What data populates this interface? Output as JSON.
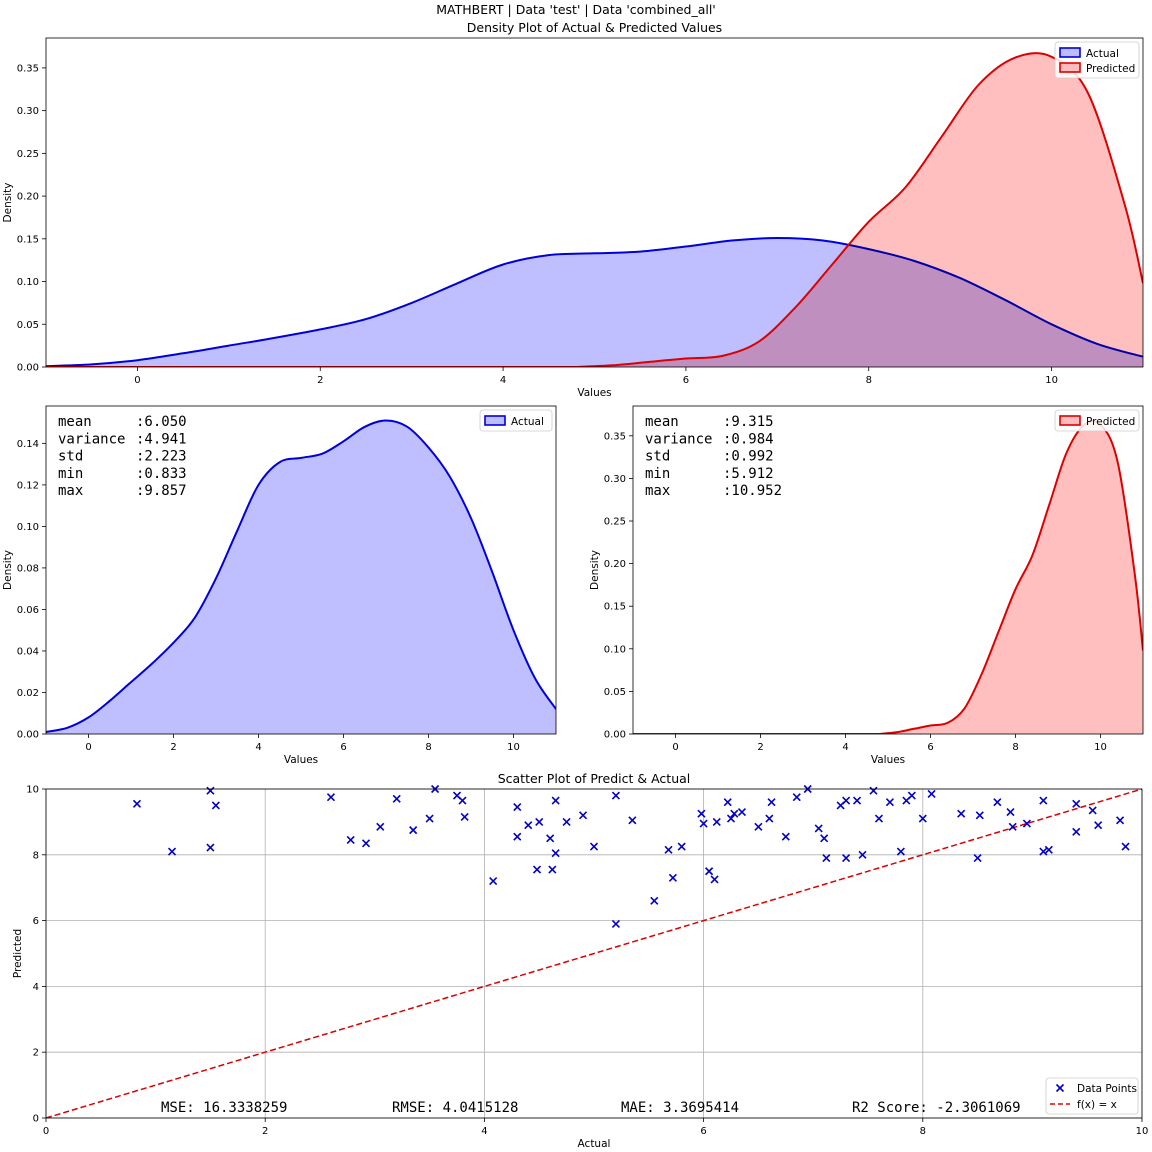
{
  "suptitle": "MATHBERT | Data 'test' | Data 'combined_all'",
  "colors": {
    "actual_line": "#0000dd",
    "actual_fill": "#bcbcff",
    "pred_line": "#dd0000",
    "pred_fill": "#ffbcbc",
    "identity": "#dd0000",
    "points": "#0000cc",
    "grid": "#b0b0b0"
  },
  "chart_data": [
    {
      "id": "top",
      "type": "area",
      "title": "Density Plot of Actual & Predicted Values",
      "xlabel": "Values",
      "ylabel": "Density",
      "xlim": [
        -1,
        11
      ],
      "ylim": [
        0,
        0.385
      ],
      "xticks": [
        0,
        2,
        4,
        6,
        8,
        10
      ],
      "yticks": [
        0.0,
        0.05,
        0.1,
        0.15,
        0.2,
        0.25,
        0.3,
        0.35
      ],
      "legend": "top-right",
      "series": [
        {
          "name": "Actual",
          "x": [
            -1,
            -0.5,
            0,
            0.5,
            1,
            1.5,
            2,
            2.5,
            3,
            3.5,
            4,
            4.5,
            5,
            5.5,
            6,
            6.5,
            7,
            7.5,
            8,
            8.5,
            9,
            9.5,
            10,
            10.5,
            11
          ],
          "y": [
            0.001,
            0.003,
            0.008,
            0.016,
            0.025,
            0.034,
            0.044,
            0.056,
            0.075,
            0.098,
            0.12,
            0.131,
            0.133,
            0.135,
            0.141,
            0.148,
            0.151,
            0.148,
            0.138,
            0.124,
            0.104,
            0.078,
            0.05,
            0.027,
            0.012
          ]
        },
        {
          "name": "Predicted",
          "x": [
            4.8,
            5.2,
            5.6,
            6.0,
            6.4,
            6.8,
            7.2,
            7.6,
            8.0,
            8.4,
            8.8,
            9.2,
            9.6,
            10.0,
            10.4,
            10.8,
            11.0
          ],
          "y": [
            0.0,
            0.002,
            0.006,
            0.01,
            0.013,
            0.03,
            0.07,
            0.12,
            0.17,
            0.21,
            0.27,
            0.33,
            0.362,
            0.363,
            0.32,
            0.19,
            0.098
          ]
        }
      ]
    },
    {
      "id": "actual",
      "type": "area",
      "title": "",
      "xlabel": "Values",
      "ylabel": "Density",
      "xlim": [
        -1,
        11
      ],
      "ylim": [
        0,
        0.158
      ],
      "xticks": [
        0,
        2,
        4,
        6,
        8,
        10
      ],
      "yticks": [
        0.0,
        0.02,
        0.04,
        0.06,
        0.08,
        0.1,
        0.12,
        0.14
      ],
      "legend": "top-right",
      "stats": [
        {
          "label": "mean",
          "value": ":6.050"
        },
        {
          "label": "variance",
          "value": ":4.941"
        },
        {
          "label": "std",
          "value": ":2.223"
        },
        {
          "label": "min",
          "value": ":0.833"
        },
        {
          "label": "max",
          "value": ":9.857"
        }
      ],
      "series": [
        {
          "name": "Actual",
          "x": [
            -1,
            -0.5,
            0,
            0.5,
            1,
            1.5,
            2,
            2.5,
            3,
            3.5,
            4,
            4.5,
            5,
            5.5,
            6,
            6.5,
            7,
            7.5,
            8,
            8.5,
            9,
            9.5,
            10,
            10.5,
            11
          ],
          "y": [
            0.001,
            0.003,
            0.008,
            0.016,
            0.025,
            0.034,
            0.044,
            0.056,
            0.075,
            0.098,
            0.12,
            0.131,
            0.133,
            0.135,
            0.141,
            0.148,
            0.151,
            0.148,
            0.138,
            0.124,
            0.104,
            0.078,
            0.05,
            0.027,
            0.012
          ]
        }
      ]
    },
    {
      "id": "pred",
      "type": "area",
      "title": "",
      "xlabel": "Values",
      "ylabel": "Density",
      "xlim": [
        -1,
        11
      ],
      "ylim": [
        0,
        0.385
      ],
      "xticks": [
        0,
        2,
        4,
        6,
        8,
        10
      ],
      "yticks": [
        0.0,
        0.05,
        0.1,
        0.15,
        0.2,
        0.25,
        0.3,
        0.35
      ],
      "legend": "top-right",
      "stats": [
        {
          "label": "mean",
          "value": ":9.315"
        },
        {
          "label": "variance",
          "value": ":0.984"
        },
        {
          "label": "std",
          "value": ":0.992"
        },
        {
          "label": "min",
          "value": ":5.912"
        },
        {
          "label": "max",
          "value": ":10.952"
        }
      ],
      "series": [
        {
          "name": "Predicted",
          "x": [
            4.8,
            5.2,
            5.6,
            6.0,
            6.4,
            6.8,
            7.2,
            7.6,
            8.0,
            8.4,
            8.8,
            9.2,
            9.6,
            10.0,
            10.4,
            10.8,
            11.0
          ],
          "y": [
            0.0,
            0.002,
            0.006,
            0.01,
            0.013,
            0.03,
            0.07,
            0.12,
            0.17,
            0.21,
            0.27,
            0.33,
            0.362,
            0.363,
            0.32,
            0.19,
            0.098
          ]
        }
      ]
    },
    {
      "id": "scatter",
      "type": "scatter",
      "title": "Scatter Plot of Predict & Actual",
      "xlabel": "Actual",
      "ylabel": "Predicted",
      "xlim": [
        0,
        10
      ],
      "ylim": [
        0,
        10
      ],
      "xticks": [
        0,
        2,
        4,
        6,
        8,
        10
      ],
      "yticks": [
        0,
        2,
        4,
        6,
        8,
        10
      ],
      "grid": true,
      "legend": "bottom-right",
      "legend_labels": [
        "Data Points",
        "f(x) = x"
      ],
      "metrics": [
        "MSE: 16.3338259",
        "RMSE: 4.0415128",
        "MAE: 3.3695414",
        "R2 Score: -2.3061069"
      ],
      "series": [
        {
          "name": "Data Points",
          "points": [
            [
              0.83,
              9.55
            ],
            [
              1.15,
              8.1
            ],
            [
              1.5,
              9.95
            ],
            [
              1.5,
              8.22
            ],
            [
              1.55,
              9.5
            ],
            [
              2.6,
              9.75
            ],
            [
              2.78,
              8.45
            ],
            [
              2.92,
              8.35
            ],
            [
              3.05,
              8.85
            ],
            [
              3.2,
              9.7
            ],
            [
              3.35,
              8.75
            ],
            [
              3.5,
              9.1
            ],
            [
              3.55,
              10.0
            ],
            [
              3.75,
              9.8
            ],
            [
              3.8,
              9.65
            ],
            [
              3.82,
              9.15
            ],
            [
              4.08,
              7.2
            ],
            [
              4.3,
              9.45
            ],
            [
              4.3,
              8.55
            ],
            [
              4.4,
              8.9
            ],
            [
              4.48,
              7.55
            ],
            [
              4.5,
              9.0
            ],
            [
              4.6,
              8.5
            ],
            [
              4.62,
              7.55
            ],
            [
              4.65,
              8.05
            ],
            [
              4.65,
              9.65
            ],
            [
              4.75,
              9.0
            ],
            [
              4.9,
              9.2
            ],
            [
              5.0,
              8.25
            ],
            [
              5.2,
              9.8
            ],
            [
              5.2,
              5.9
            ],
            [
              5.35,
              9.05
            ],
            [
              5.55,
              6.6
            ],
            [
              5.68,
              8.15
            ],
            [
              5.72,
              7.3
            ],
            [
              5.8,
              8.25
            ],
            [
              5.98,
              9.25
            ],
            [
              6.0,
              8.95
            ],
            [
              6.05,
              7.5
            ],
            [
              6.1,
              7.25
            ],
            [
              6.12,
              9.0
            ],
            [
              6.22,
              9.6
            ],
            [
              6.25,
              9.1
            ],
            [
              6.28,
              9.25
            ],
            [
              6.35,
              9.3
            ],
            [
              6.5,
              8.85
            ],
            [
              6.6,
              9.1
            ],
            [
              6.62,
              9.6
            ],
            [
              6.75,
              8.55
            ],
            [
              6.85,
              9.75
            ],
            [
              6.95,
              10.0
            ],
            [
              7.05,
              8.8
            ],
            [
              7.1,
              8.5
            ],
            [
              7.12,
              7.9
            ],
            [
              7.25,
              9.5
            ],
            [
              7.3,
              9.65
            ],
            [
              7.3,
              7.9
            ],
            [
              7.4,
              9.65
            ],
            [
              7.45,
              8.0
            ],
            [
              7.55,
              9.95
            ],
            [
              7.6,
              9.1
            ],
            [
              7.7,
              9.6
            ],
            [
              7.8,
              8.1
            ],
            [
              7.85,
              9.65
            ],
            [
              7.9,
              9.8
            ],
            [
              8.0,
              9.1
            ],
            [
              8.08,
              9.85
            ],
            [
              8.35,
              9.25
            ],
            [
              8.5,
              7.9
            ],
            [
              8.52,
              9.2
            ],
            [
              8.68,
              9.6
            ],
            [
              8.8,
              9.3
            ],
            [
              8.82,
              8.85
            ],
            [
              8.95,
              8.95
            ],
            [
              9.1,
              9.65
            ],
            [
              9.1,
              8.1
            ],
            [
              9.15,
              8.15
            ],
            [
              9.4,
              9.55
            ],
            [
              9.4,
              8.7
            ],
            [
              9.55,
              9.35
            ],
            [
              9.6,
              8.9
            ],
            [
              9.8,
              9.05
            ],
            [
              9.85,
              8.25
            ]
          ]
        },
        {
          "name": "f(x) = x",
          "x": [
            0,
            10
          ],
          "y": [
            0,
            10
          ]
        }
      ]
    }
  ]
}
